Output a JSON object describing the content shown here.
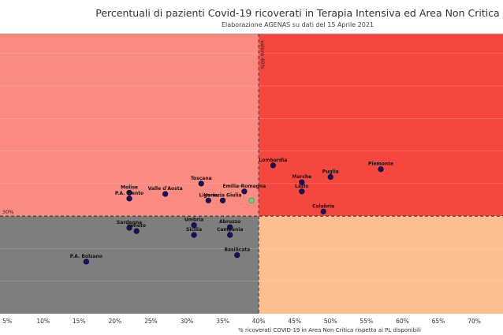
{
  "chart_data": {
    "type": "scatter",
    "title": "Percentuali di pazienti Covid-19 ricoverati in Terapia Intensiva ed Area Non Critica",
    "subtitle": "Elaborazione AGENAS su dati del 15 Aprile 2021",
    "xlabel": "% ricoverati COVID-19 in Area Non Critica rispetto ai PL disponibili",
    "ylabel": "",
    "xlim": [
      4,
      74
    ],
    "ylim": [
      15,
      58
    ],
    "x_ticks": [
      "5%",
      "10%",
      "15%",
      "20%",
      "25%",
      "30%",
      "35%",
      "40%",
      "45%",
      "50%",
      "55%",
      "60%",
      "65%",
      "70%",
      "7"
    ],
    "x_tick_values": [
      5,
      10,
      15,
      20,
      25,
      30,
      35,
      40,
      45,
      50,
      55,
      60,
      65,
      70,
      75
    ],
    "grid": true,
    "vertical_reference": {
      "value": 40,
      "label": "valore 40%"
    },
    "horizontal_reference": {
      "value": 30,
      "label": "30%"
    },
    "quadrant_colors": {
      "top_left": "#fb8b80",
      "top_right": "#f6473f",
      "bottom_left": "#7e7e7e",
      "bottom_right": "#fdbe90"
    },
    "point_color": "#14145e",
    "highlight_color": "#5ed484",
    "points": [
      {
        "name": "Piemonte",
        "x": 57,
        "y": 37.2
      },
      {
        "name": "Puglia",
        "x": 50,
        "y": 36.0
      },
      {
        "name": "Lombardia",
        "x": 42,
        "y": 37.8
      },
      {
        "name": "Marche",
        "x": 46,
        "y": 35.2
      },
      {
        "name": "Lazio",
        "x": 46,
        "y": 33.8
      },
      {
        "name": "Toscana",
        "x": 32,
        "y": 35.0
      },
      {
        "name": "Emilia-Romagna",
        "x": 38,
        "y": 33.8
      },
      {
        "name": "Molise",
        "x": 22,
        "y": 33.6
      },
      {
        "name": "Valle d'Aosta",
        "x": 27,
        "y": 33.4
      },
      {
        "name": "P.A. Trento",
        "x": 22,
        "y": 32.7
      },
      {
        "name": "Liguria",
        "x": 33,
        "y": 32.4
      },
      {
        "name": "Venezia Giulia",
        "x": 35,
        "y": 32.4
      },
      {
        "name": "Friuli",
        "x": 39,
        "y": 32.4,
        "highlight": true
      },
      {
        "name": "Calabria",
        "x": 49,
        "y": 30.7
      },
      {
        "name": "Sardegna",
        "x": 22,
        "y": 28.2
      },
      {
        "name": "Veneto",
        "x": 23,
        "y": 27.7
      },
      {
        "name": "Umbria",
        "x": 31,
        "y": 28.6
      },
      {
        "name": "Abruzzo",
        "x": 36,
        "y": 28.3
      },
      {
        "name": "Sicilia",
        "x": 31,
        "y": 27.1
      },
      {
        "name": "Campania",
        "x": 36,
        "y": 27.1
      },
      {
        "name": "Basilicata",
        "x": 37,
        "y": 24.0
      },
      {
        "name": "P.A. Bolzano",
        "x": 16,
        "y": 23.0
      }
    ]
  }
}
